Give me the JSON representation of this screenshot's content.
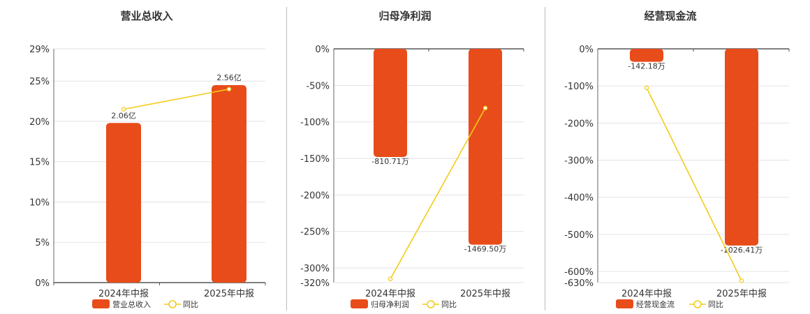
{
  "chart_data": [
    {
      "type": "bar",
      "title": "营业总收入",
      "categories": [
        "2024年中报",
        "2025年中报"
      ],
      "bar_values": [
        0.198,
        0.245
      ],
      "bar_labels": [
        "2.06亿",
        "2.56亿"
      ],
      "line_values": [
        0.215,
        0.24
      ],
      "y_ticks": [
        "29%",
        "25%",
        "20%",
        "15%",
        "10%",
        "5%",
        "0%"
      ],
      "y_tick_values": [
        0.29,
        0.25,
        0.2,
        0.15,
        0.1,
        0.05,
        0.0
      ],
      "ylim": [
        0,
        0.29
      ],
      "legend": [
        "营业总收入",
        "同比"
      ],
      "bar_color": "#e84c1a",
      "line_color": "#f2cc1a"
    },
    {
      "type": "bar",
      "title": "归母净利润",
      "categories": [
        "2024年中报",
        "2025年中报"
      ],
      "bar_values": [
        -1.48,
        -2.68
      ],
      "bar_labels": [
        "-810.71万",
        "-1469.50万"
      ],
      "line_values": [
        -3.15,
        -0.81
      ],
      "y_ticks": [
        "0%",
        "-50%",
        "-100%",
        "-150%",
        "-200%",
        "-250%",
        "-300%",
        "-320%"
      ],
      "y_tick_values": [
        0,
        -0.5,
        -1.0,
        -1.5,
        -2.0,
        -2.5,
        -3.0,
        -3.2
      ],
      "ylim": [
        -3.2,
        0
      ],
      "legend": [
        "归母净利润",
        "同比"
      ],
      "bar_color": "#e84c1a",
      "line_color": "#f2cc1a"
    },
    {
      "type": "bar",
      "title": "经营现金流",
      "categories": [
        "2024年中报",
        "2025年中报"
      ],
      "bar_values": [
        -0.35,
        -5.3
      ],
      "bar_labels": [
        "-142.18万",
        "-1026.41万"
      ],
      "line_values": [
        -1.05,
        -6.25
      ],
      "y_ticks": [
        "0%",
        "-100%",
        "-200%",
        "-300%",
        "-400%",
        "-500%",
        "-600%",
        "-630%"
      ],
      "y_tick_values": [
        0,
        -1,
        -2,
        -3,
        -4,
        -5,
        -6,
        -6.3
      ],
      "ylim": [
        -6.3,
        0
      ],
      "legend": [
        "经营现金流",
        "同比"
      ],
      "bar_color": "#e84c1a",
      "line_color": "#f2cc1a"
    }
  ]
}
